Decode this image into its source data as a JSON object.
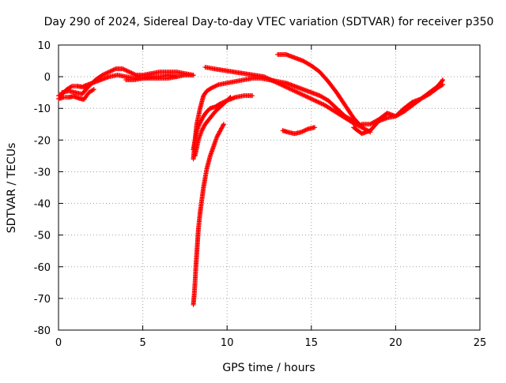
{
  "chart_data": {
    "type": "scatter",
    "title": "Day 290 of 2024, Sidereal Day-to-day VTEC variation (SDTVAR) for receiver p350",
    "xlabel": "GPS time / hours",
    "ylabel": "SDTVAR / TECUs",
    "xlim": [
      0,
      25
    ],
    "ylim": [
      -80,
      10
    ],
    "xticks": [
      0,
      5,
      10,
      15,
      20,
      25
    ],
    "xtick_labels": [
      "0",
      "5",
      "10",
      "15",
      "20",
      "25"
    ],
    "yticks": [
      10,
      0,
      -10,
      -20,
      -30,
      -40,
      -50,
      -60,
      -70,
      -80
    ],
    "ytick_labels": [
      "10",
      "0",
      "-10",
      "-20",
      "-30",
      "-40",
      "-50",
      "-60",
      "-70",
      "-80"
    ],
    "grid": true,
    "marker": "+",
    "colors": {
      "series": "#ff0000",
      "grid": "#a0a0a0",
      "axis": "#000000"
    },
    "series": [
      {
        "name": "arc-1",
        "x": [
          0.0,
          0.2,
          0.5,
          0.8,
          1.1,
          1.4,
          1.6,
          1.8
        ],
        "y": [
          -6,
          -5.5,
          -4,
          -3,
          -3,
          -3.2,
          -3.5,
          -3
        ]
      },
      {
        "name": "arc-2",
        "x": [
          0.0,
          0.3,
          0.6,
          0.9,
          1.2,
          1.5,
          1.8,
          2.1
        ],
        "y": [
          -7,
          -6.5,
          -6.5,
          -6.2,
          -6.8,
          -7.2,
          -5,
          -4
        ]
      },
      {
        "name": "arc-3",
        "x": [
          0.2,
          0.6,
          1.0,
          1.4,
          1.8,
          2.2,
          2.6,
          3.0,
          3.4,
          3.8,
          4.2,
          4.6,
          5.0,
          5.5,
          6.0,
          6.5,
          7.0,
          7.5,
          8.0
        ],
        "y": [
          -5,
          -4.5,
          -5,
          -5.5,
          -3,
          -1,
          0.5,
          1.5,
          2.5,
          2.5,
          1.5,
          0.5,
          0.5,
          1,
          1.5,
          1.5,
          1.5,
          1,
          0.5
        ]
      },
      {
        "name": "arc-4",
        "x": [
          1.5,
          2.0,
          2.5,
          3.0,
          3.5,
          4.0,
          4.5,
          5.0,
          5.5,
          6.0,
          6.5,
          7.0
        ],
        "y": [
          -3,
          -2,
          -1,
          0,
          0.5,
          0,
          -0.5,
          -0.5,
          0,
          0,
          0.5,
          0
        ]
      },
      {
        "name": "arc-5",
        "x": [
          4.0,
          4.5,
          5.0,
          5.5,
          6.0,
          6.5,
          7.0,
          7.5,
          8.0
        ],
        "y": [
          -1,
          -1,
          -0.5,
          -0.5,
          -0.5,
          -0.5,
          0,
          0.5,
          0.5
        ]
      },
      {
        "name": "arc-6",
        "x": [
          8.0,
          8.1,
          8.2,
          8.4,
          8.6,
          8.8,
          9.1,
          9.5,
          10.0,
          10.5,
          11.0,
          11.5,
          12.0,
          12.5,
          13.0,
          13.5,
          14.0,
          14.5,
          15.0,
          15.5,
          16.0,
          16.5,
          17.0,
          17.5,
          18.0
        ],
        "y": [
          -26,
          -20,
          -15,
          -10,
          -6,
          -4.5,
          -3.5,
          -2.5,
          -2,
          -1.5,
          -1,
          -0.5,
          -0.5,
          -1,
          -1.5,
          -2,
          -3,
          -4,
          -5,
          -6,
          -7.5,
          -10,
          -12.5,
          -14,
          -15.5
        ]
      },
      {
        "name": "arc-7",
        "x": [
          8.0,
          8.1,
          8.2,
          8.4,
          8.6,
          8.8,
          9.0,
          9.3,
          9.6,
          10.0,
          10.5,
          11.0,
          11.5
        ],
        "y": [
          -23,
          -20,
          -17,
          -14.5,
          -12.5,
          -11,
          -10,
          -9.5,
          -8.5,
          -7.5,
          -6.5,
          -6,
          -6
        ]
      },
      {
        "name": "arc-8",
        "x": [
          8.1,
          8.3,
          8.5,
          8.7,
          9.0,
          9.3,
          9.6,
          9.8,
          10.0,
          10.2
        ],
        "y": [
          -25,
          -20,
          -17,
          -15,
          -13,
          -11,
          -9.5,
          -8.5,
          -7.5,
          -6.5
        ]
      },
      {
        "name": "arc-9",
        "x": [
          8.0,
          8.05,
          8.1,
          8.15,
          8.2,
          8.25,
          8.3,
          8.4,
          8.5,
          8.6,
          8.7,
          8.8,
          9.0,
          9.2,
          9.4,
          9.6,
          9.7,
          9.8
        ],
        "y": [
          -72,
          -69,
          -65,
          -60,
          -56,
          -52,
          -48,
          -43,
          -39,
          -35,
          -32,
          -29,
          -25,
          -22,
          -19,
          -17,
          -16,
          -15
        ]
      },
      {
        "name": "arc-10",
        "x": [
          8.7,
          9.2,
          9.8,
          10.4,
          11.0,
          11.6,
          12.2,
          12.8,
          13.4,
          14.0,
          14.6,
          15.2,
          15.8,
          16.4,
          17.0,
          17.6,
          18.0
        ],
        "y": [
          3,
          2.5,
          2,
          1.5,
          1,
          0.5,
          0,
          -1.5,
          -3,
          -4.5,
          -6,
          -7.5,
          -9,
          -11,
          -13,
          -15,
          -16
        ]
      },
      {
        "name": "arc-11",
        "x": [
          13.0,
          13.5,
          14.0,
          14.5,
          15.0,
          15.5,
          16.0,
          16.5,
          17.0,
          17.5,
          18.0,
          18.5
        ],
        "y": [
          7,
          7,
          6,
          5,
          3.5,
          1.5,
          -1.5,
          -5,
          -9,
          -13,
          -16,
          -17.5
        ]
      },
      {
        "name": "arc-12",
        "x": [
          13.3,
          13.6,
          14.0,
          14.4,
          14.8,
          15.2
        ],
        "y": [
          -17,
          -17.5,
          -18,
          -17.5,
          -16.5,
          -16
        ]
      },
      {
        "name": "arc-13",
        "x": [
          17.5,
          18.0,
          18.5,
          19.0,
          19.5,
          20.0,
          20.5,
          21.0,
          21.5,
          22.0,
          22.5,
          22.8
        ],
        "y": [
          -16,
          -18,
          -17,
          -14,
          -13,
          -12.5,
          -11,
          -9,
          -7,
          -5,
          -3,
          -1
        ]
      },
      {
        "name": "arc-14",
        "x": [
          18.0,
          18.5,
          19.0,
          19.5,
          20.0,
          20.5,
          21.0,
          21.5,
          22.0,
          22.5,
          22.8
        ],
        "y": [
          -15,
          -15,
          -13.5,
          -11.5,
          -12.5,
          -10,
          -8,
          -7,
          -5.5,
          -3.5,
          -2.5
        ]
      }
    ]
  }
}
